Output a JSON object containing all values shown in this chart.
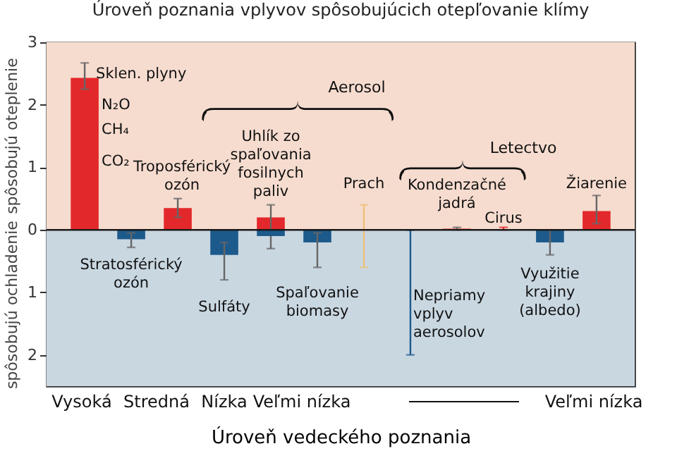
{
  "chart_data": {
    "type": "bar",
    "title": "Úroveň poznania vplyvov spôsobujúcich otepľovanie klímy",
    "xlabel": "Úroveň vedeckého poznania",
    "ylabel": "spôsobujú oteplenie",
    "categories": [
      null,
      null,
      null,
      null,
      null,
      null,
      null,
      null,
      null,
      null,
      null,
      null
    ],
    "series": [
      {
        "color": "#e3282b",
        "values": [
          2.43,
          null,
          0.35,
          null,
          0.2,
          null,
          null,
          null,
          0.02,
          0,
          null,
          0.3
        ],
        "errors": [
          [
            2.25,
            2.67
          ],
          null,
          [
            0.2,
            0.5
          ],
          null,
          [
            -0.3,
            0.4
          ],
          null,
          null,
          null,
          [
            0,
            0.04
          ],
          [
            0,
            0.04
          ],
          null,
          [
            0.1,
            0.55
          ]
        ]
      },
      {
        "color": "#1d5a8c",
        "values": [
          null,
          -0.15,
          null,
          -0.4,
          -0.1,
          -0.2,
          null,
          0,
          null,
          null,
          -0.2,
          null
        ],
        "errors": [
          null,
          [
            -0.28,
            -0.05
          ],
          null,
          [
            -0.8,
            -0.2
          ],
          null,
          [
            -0.6,
            -0.05
          ],
          null,
          [
            -2,
            0
          ],
          null,
          null,
          [
            -0.4,
            0
          ],
          null
        ]
      },
      {
        "color": "#f0c078",
        "values": [
          null,
          null,
          null,
          null,
          null,
          null,
          0,
          null,
          null,
          null,
          null,
          null
        ],
        "errors": [
          null,
          null,
          null,
          null,
          null,
          null,
          [
            -0.6,
            0.4
          ],
          null,
          null,
          null,
          null,
          null
        ]
      }
    ],
    "ylim": [
      -2.5,
      3
    ],
    "yticks": [
      3,
      2,
      1,
      0,
      {
        "value": -1,
        "label": "1"
      },
      {
        "value": -2,
        "label": "2"
      }
    ],
    "bands": [
      {
        "axis": "y",
        "from": 0,
        "to": 3,
        "color": "#f6dccf"
      },
      {
        "axis": "y",
        "from": -2.5,
        "to": 0,
        "color": "#c9d7e1"
      }
    ],
    "ref_lines": [
      {
        "axis": "y",
        "value": 0,
        "color": "#1a1a1a"
      }
    ],
    "annotations": [
      "spôsobujú ochladenie",
      "Aerosol",
      "Letectvo",
      "N₂O",
      "CH₄",
      "CO₂",
      "Vysoká",
      "Stredná",
      "Nízka",
      "Veľmi nízka",
      "Veľmi nízka",
      "Sklen. plyny",
      "Stratosférický ozón",
      "Troposférický ozón",
      "Sulfáty",
      "Uhlík zo spaľovania fosilnych paliv",
      "Spaľovanie biomasy",
      "Prach",
      "Nepriamy vplyv aerosolov",
      "Kondenzačné jadrá",
      "Cirus",
      "Využitie krajiny (albedo)",
      "Žiarenie"
    ],
    "grid": false
  }
}
